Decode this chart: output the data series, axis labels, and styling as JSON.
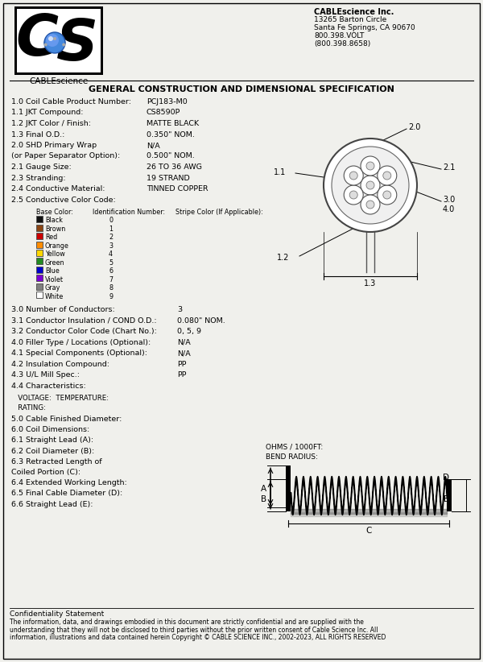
{
  "bg_color": "#f0f0ec",
  "title": "GENERAL CONSTRUCTION AND DIMENSIONAL SPECIFICATION",
  "company_name": "CABLEscience Inc.",
  "company_address_lines": [
    "13265 Barton Circle",
    "Santa Fe Springs, CA 90670",
    "800.398.VOLT",
    "(800.398.8658)"
  ],
  "spec_rows": [
    [
      "1.0 Coil Cable Product Number:",
      "PCJ183-M0"
    ],
    [
      "1.1 JKT Compound:",
      "CS8590P"
    ],
    [
      "1.2 JKT Color / Finish:",
      "MATTE BLACK"
    ],
    [
      "1.3 Final O.D.:",
      "0.350\" NOM."
    ],
    [
      "2.0 SHD Primary Wrap",
      "N/A"
    ],
    [
      "(or Paper Separator Option):",
      "0.500\" NOM."
    ],
    [
      "2.1 Gauge Size:",
      "26 TO 36 AWG"
    ],
    [
      "2.3 Stranding:",
      "19 STRAND"
    ],
    [
      "2.4 Conductive Material:",
      "TINNED COPPER"
    ],
    [
      "2.5 Conductive Color Code:",
      ""
    ]
  ],
  "color_table_headers": [
    "Base Color:",
    "Identification Number:",
    "Stripe Color (If Applicable):"
  ],
  "color_table_rows": [
    [
      "Black",
      "0",
      "#111111"
    ],
    [
      "Brown",
      "1",
      "#8B4513"
    ],
    [
      "Red",
      "2",
      "#CC0000"
    ],
    [
      "Orange",
      "3",
      "#FF8C00"
    ],
    [
      "Yellow",
      "4",
      "#FFD700"
    ],
    [
      "Green",
      "5",
      "#228B22"
    ],
    [
      "Blue",
      "6",
      "#0000CC"
    ],
    [
      "Violet",
      "7",
      "#7B00D4"
    ],
    [
      "Gray",
      "8",
      "#808080"
    ],
    [
      "White",
      "9",
      "#FFFFFF"
    ]
  ],
  "lower_spec_rows": [
    [
      "3.0 Number of Conductors:",
      "3"
    ],
    [
      "3.1 Conductor Insulation / COND O.D.:",
      "0.080\" NOM."
    ],
    [
      "3.2 Conductor Color Code (Chart No.):",
      "0, 5, 9"
    ],
    [
      "4.0 Filler Type / Locations (Optional):",
      "N/A"
    ],
    [
      "4.1 Special Components (Optional):",
      "N/A"
    ],
    [
      "4.2 Insulation Compound:",
      "PP"
    ],
    [
      "4.3 U/L Mill Spec.:",
      "PP"
    ],
    [
      "4.4 Characteristics:",
      ""
    ]
  ],
  "voltage_label": "   VOLTAGE:  TEMPERATURE:",
  "rating_label": "   RATING:",
  "ohms_label": "OHMS / 1000FT:",
  "bend_label": "BEND RADIUS:",
  "coil_dim_rows": [
    [
      "5.0 Cable Finished Diameter:",
      ""
    ],
    [
      "6.0 Coil Dimensions:",
      ""
    ],
    [
      "6.1 Straight Lead (A):",
      ""
    ],
    [
      "6.2 Coil Diameter (B):",
      ""
    ],
    [
      "6.3 Retracted Length of",
      ""
    ],
    [
      "Coiled Portion (C):",
      ""
    ],
    [
      "6.4 Extended Working Length:",
      ""
    ],
    [
      "6.5 Final Cable Diameter (D):",
      ""
    ],
    [
      "6.6 Straight Lead (E):",
      ""
    ]
  ],
  "confidentiality_title": "Confidentiality Statement",
  "confidentiality_lines": [
    "The information, data, and drawings embodied in this document are strictly confidential and are supplied with the",
    "understanding that they will not be disclosed to third parties without the prior written consent of Cable Science Inc. All",
    "information, illustrations and data contained herein Copyright © CABLE SCIENCE INC., 2002-2023, ALL RIGHTS RESERVED"
  ]
}
